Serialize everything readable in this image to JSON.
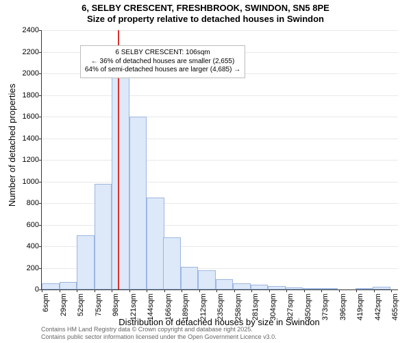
{
  "title": "6, SELBY CRESCENT, FRESHBROOK, SWINDON, SN5 8PE",
  "subtitle": "Size of property relative to detached houses in Swindon",
  "ylabel": "Number of detached properties",
  "xlabel": "Distribution of detached houses by size in Swindon",
  "footer1": "Contains HM Land Registry data © Crown copyright and database right 2025.",
  "footer2": "Contains public sector information licensed under the Open Government Licence v3.0.",
  "annotation": {
    "line1": "6 SELBY CRESCENT: 106sqm",
    "line2": "← 36% of detached houses are smaller (2,655)",
    "line3": "64% of semi-detached houses are larger (4,685) →"
  },
  "chart": {
    "type": "histogram",
    "ylim": [
      0,
      2400
    ],
    "ytick_step": 200,
    "ymax_label": 2400,
    "background_color": "#ffffff",
    "grid_color": "#e8e8e8",
    "axis_color": "#333333",
    "bar_fill": "#dde8f9",
    "bar_stroke": "#9bb6df",
    "marker_color": "#d7322e",
    "marker_x_sqm": 106,
    "title_fontsize": 13,
    "label_fontsize": 13,
    "tick_fontsize": 11,
    "bin_width_sqm": 23,
    "x_start_sqm": 6,
    "x_end_sqm": 475,
    "xtick_labels": [
      "6sqm",
      "29sqm",
      "52sqm",
      "75sqm",
      "98sqm",
      "121sqm",
      "144sqm",
      "166sqm",
      "189sqm",
      "212sqm",
      "235sqm",
      "258sqm",
      "281sqm",
      "304sqm",
      "327sqm",
      "350sqm",
      "373sqm",
      "396sqm",
      "419sqm",
      "442sqm",
      "465sqm"
    ],
    "bins": [
      {
        "x": 6,
        "count": 60
      },
      {
        "x": 29,
        "count": 70
      },
      {
        "x": 52,
        "count": 500
      },
      {
        "x": 75,
        "count": 980
      },
      {
        "x": 98,
        "count": 1960
      },
      {
        "x": 121,
        "count": 1600
      },
      {
        "x": 144,
        "count": 850
      },
      {
        "x": 166,
        "count": 480
      },
      {
        "x": 189,
        "count": 210
      },
      {
        "x": 212,
        "count": 180
      },
      {
        "x": 235,
        "count": 95
      },
      {
        "x": 258,
        "count": 60
      },
      {
        "x": 281,
        "count": 45
      },
      {
        "x": 304,
        "count": 30
      },
      {
        "x": 327,
        "count": 20
      },
      {
        "x": 350,
        "count": 10
      },
      {
        "x": 373,
        "count": 5
      },
      {
        "x": 396,
        "count": 0
      },
      {
        "x": 419,
        "count": 15
      },
      {
        "x": 442,
        "count": 25
      },
      {
        "x": 465,
        "count": 0
      }
    ]
  }
}
